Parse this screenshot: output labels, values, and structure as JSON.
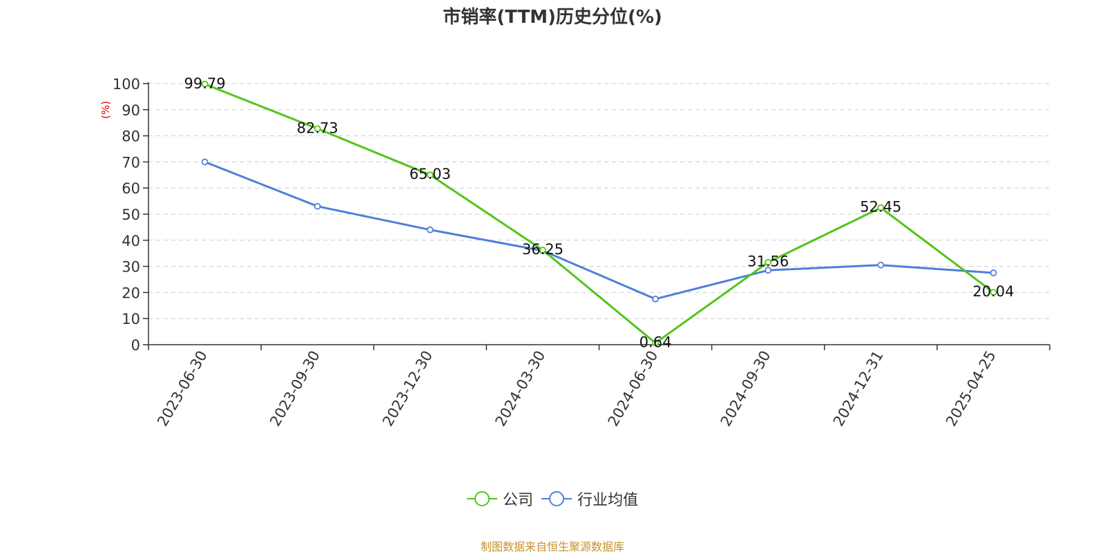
{
  "title": "市销率(TTM)历史分位(%)",
  "source": "制图数据来自恒生聚源数据库",
  "colors": {
    "company": "#52c41a",
    "industry": "#4e7fdc",
    "source_text": "#c8902a",
    "axis_unit": "#e00000"
  },
  "chart_data": {
    "type": "line",
    "title": "市销率(TTM)历史分位(%)",
    "ylabel": "(%)",
    "xlabel": "",
    "ylim": [
      0,
      100
    ],
    "y_ticks": [
      0,
      10,
      20,
      30,
      40,
      50,
      60,
      70,
      80,
      90,
      100
    ],
    "grid": true,
    "legend_position": "bottom-center",
    "categories": [
      "2023-06-30",
      "2023-09-30",
      "2023-12-30",
      "2024-03-30",
      "2024-06-30",
      "2024-09-30",
      "2024-12-31",
      "2025-04-25"
    ],
    "series": [
      {
        "name": "公司",
        "values": [
          99.79,
          82.73,
          65.03,
          36.25,
          0.64,
          31.56,
          52.45,
          20.04
        ],
        "labels": [
          "99.79",
          "82.73",
          "65.03",
          "36.25",
          "0.64",
          "31.56",
          "52.45",
          "20.04"
        ]
      },
      {
        "name": "行业均值",
        "values": [
          70,
          53,
          44,
          36,
          17.5,
          28.5,
          30.5,
          27.5
        ]
      }
    ]
  }
}
